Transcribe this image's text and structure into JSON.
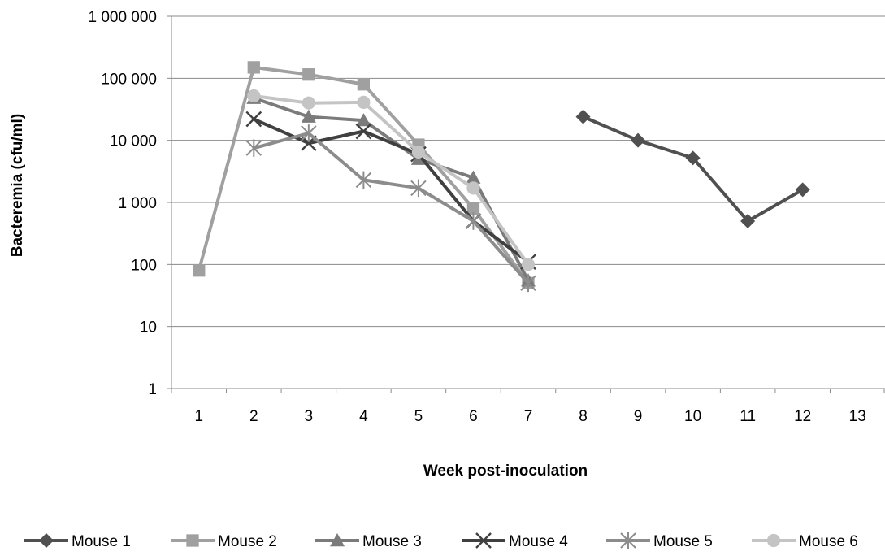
{
  "chart_data": {
    "type": "line",
    "title": "",
    "xlabel": "Week post-inoculation",
    "ylabel": "Bacteremia (cfu/ml)",
    "yscale": "log",
    "ylim": [
      1,
      1000000
    ],
    "yticks": [
      1,
      10,
      100,
      1000,
      10000,
      100000,
      1000000
    ],
    "ytick_labels": [
      "1",
      "10",
      "100",
      "1 000",
      "10 000",
      "100 000",
      "1 000 000"
    ],
    "categories": [
      "1",
      "2",
      "3",
      "4",
      "5",
      "6",
      "7",
      "8",
      "9",
      "10",
      "11",
      "12",
      "13"
    ],
    "grid": "horizontal",
    "legend_position": "bottom",
    "series": [
      {
        "name": "Mouse 1",
        "marker": "diamond",
        "color": "#505050",
        "values": [
          null,
          null,
          null,
          null,
          null,
          null,
          null,
          24000,
          10000,
          5200,
          500,
          1600,
          null
        ]
      },
      {
        "name": "Mouse 2",
        "marker": "square",
        "color": "#a0a0a0",
        "values": [
          80,
          150000,
          115000,
          80000,
          8500,
          800,
          50,
          null,
          null,
          null,
          null,
          null,
          null
        ]
      },
      {
        "name": "Mouse 3",
        "marker": "triangle",
        "color": "#7b7b7b",
        "values": [
          null,
          48000,
          24000,
          21000,
          5000,
          2500,
          55,
          null,
          null,
          null,
          null,
          null,
          null
        ]
      },
      {
        "name": "Mouse 4",
        "marker": "x",
        "color": "#404040",
        "values": [
          null,
          22000,
          9000,
          14000,
          6000,
          500,
          110,
          null,
          null,
          null,
          null,
          null,
          null
        ]
      },
      {
        "name": "Mouse 5",
        "marker": "star",
        "color": "#8c8c8c",
        "values": [
          null,
          7500,
          13000,
          2300,
          1700,
          500,
          50,
          null,
          null,
          null,
          null,
          null,
          null
        ]
      },
      {
        "name": "Mouse 6",
        "marker": "circle",
        "color": "#c4c4c4",
        "values": [
          null,
          52000,
          40000,
          41000,
          6500,
          1700,
          100,
          null,
          null,
          null,
          null,
          null,
          null
        ]
      }
    ]
  }
}
